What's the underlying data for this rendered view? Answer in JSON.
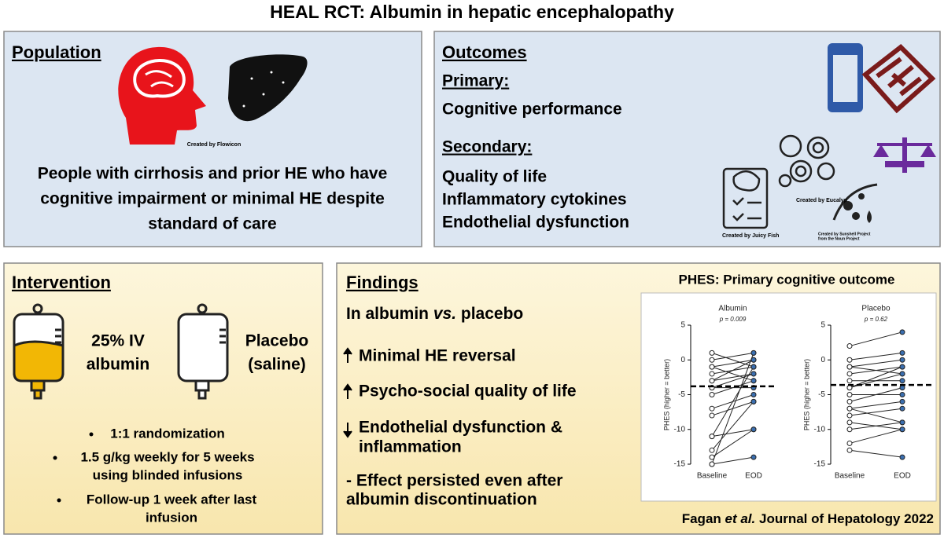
{
  "title": "HEAL RCT: Albumin in hepatic encephalopathy",
  "population": {
    "heading": "Population",
    "credit": "Created by Flowicon",
    "text": [
      "People with cirrhosis and prior HE who have",
      "cognitive impairment or minimal HE despite",
      "standard of care"
    ]
  },
  "outcomes": {
    "heading": "Outcomes",
    "primary_label": "Primary:",
    "primary": [
      "Cognitive performance"
    ],
    "secondary_label": "Secondary:",
    "secondary": [
      "Quality of life",
      "Inflammatory cytokines",
      "Endothelial dysfunction"
    ],
    "credits": [
      "Created by Eucalyp",
      "Created by Juicy Fish",
      "Created by Sunshell Project",
      "from the Noun Project"
    ]
  },
  "intervention": {
    "heading": "Intervention",
    "arms": [
      [
        "25% IV",
        "albumin"
      ],
      [
        "Placebo",
        "(saline)"
      ]
    ],
    "bullets": [
      [
        "1:1 randomization"
      ],
      [
        "1.5 g/kg weekly for 5 weeks",
        "using blinded infusions"
      ],
      [
        "Follow-up 1 week after last",
        "infusion"
      ]
    ]
  },
  "findings": {
    "heading": "Findings",
    "comparison": [
      "In albumin ",
      "vs.",
      " placebo"
    ],
    "items": [
      [
        "Minimal HE reversal"
      ],
      [
        "Psycho-social quality of life"
      ],
      [
        "Endothelial dysfunction &",
        "inflammation"
      ]
    ],
    "note": [
      "- Effect persisted even after",
      "albumin discontinuation"
    ],
    "chart_heading": "PHES: Primary cognitive outcome",
    "citation": [
      "Fagan ",
      "et al.",
      " Journal of Hepatology 2022"
    ]
  },
  "chart_data": [
    {
      "type": "paired",
      "title": "Albumin",
      "subtitle": "p = 0.009",
      "ylabel": "PHES (higher = better)",
      "categories": [
        "Baseline",
        "EOD"
      ],
      "ylim": [
        -15,
        5
      ],
      "yticks": [
        5,
        0,
        -5,
        -10,
        -15
      ],
      "reference_line": -3.8,
      "color": "#3b6fb0",
      "pairs": [
        [
          1,
          -1
        ],
        [
          0,
          1
        ],
        [
          -1,
          0
        ],
        [
          -1,
          -3
        ],
        [
          -2,
          -1
        ],
        [
          -3,
          0
        ],
        [
          -3,
          -2
        ],
        [
          -4,
          -4
        ],
        [
          -4,
          -2
        ],
        [
          -5,
          -3
        ],
        [
          -7,
          -5
        ],
        [
          -8,
          -6
        ],
        [
          -11,
          -1
        ],
        [
          -11,
          -10
        ],
        [
          -13,
          -6
        ],
        [
          -14,
          -10
        ],
        [
          -15,
          -14
        ],
        [
          -15,
          1
        ]
      ]
    },
    {
      "type": "paired",
      "title": "Placebo",
      "subtitle": "p = 0.62",
      "ylabel": "PHES (higher = better)",
      "categories": [
        "Baseline",
        "EOD"
      ],
      "ylim": [
        -15,
        5
      ],
      "yticks": [
        5,
        0,
        -5,
        -10,
        -15
      ],
      "reference_line": -3.6,
      "color": "#3b6fb0",
      "pairs": [
        [
          2,
          4
        ],
        [
          0,
          1
        ],
        [
          -1,
          0
        ],
        [
          -1,
          -2
        ],
        [
          -2,
          -1
        ],
        [
          -3,
          -3
        ],
        [
          -4,
          -2
        ],
        [
          -4,
          -1
        ],
        [
          -5,
          -5
        ],
        [
          -6,
          -4
        ],
        [
          -7,
          -6
        ],
        [
          -7,
          -9
        ],
        [
          -8,
          -7
        ],
        [
          -9,
          -10
        ],
        [
          -10,
          -9
        ],
        [
          -12,
          -10
        ],
        [
          -13,
          -14
        ]
      ]
    }
  ]
}
